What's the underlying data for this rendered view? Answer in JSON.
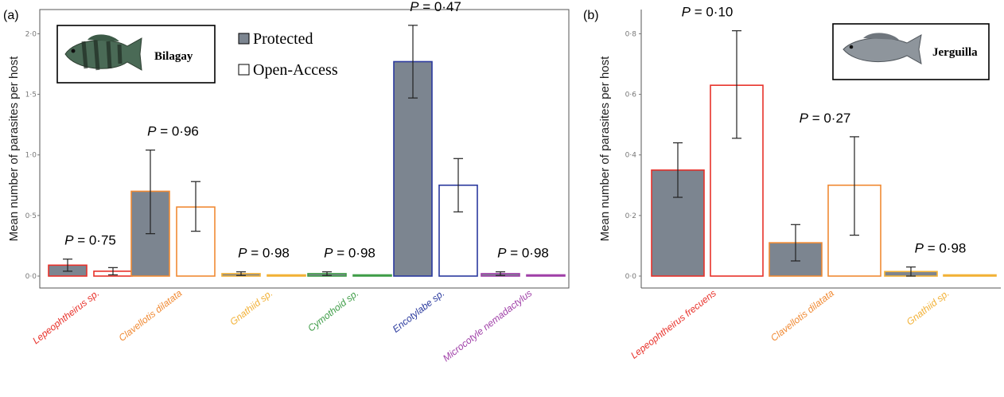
{
  "chart_data": [
    {
      "panel_label": "(a)",
      "type": "bar",
      "title": "",
      "inset_label": "Bilagay",
      "ylabel": "Mean number of parasites per host",
      "xlabel": "",
      "ylim": [
        0,
        2.2
      ],
      "yticks": [
        "0·0",
        "0·5",
        "1·0",
        "1·5",
        "2·0"
      ],
      "ytick_values": [
        0,
        0.5,
        1.0,
        1.5,
        2.0
      ],
      "grid": false,
      "legend": {
        "placement": "top-center",
        "entries": [
          {
            "name": "Protected",
            "fill": "#7c8590"
          },
          {
            "name": "Open-Access",
            "fill": "#ffffff"
          }
        ]
      },
      "categories": [
        "Lepeophtheirus sp.",
        "Clavellotis dilatata",
        "Gnathiid sp.",
        "Cymothoid sp.",
        "Encotylabe sp.",
        "Microcotyle nemadactylus"
      ],
      "category_colors": [
        "#e8312a",
        "#f08a34",
        "#f2b136",
        "#3f9d48",
        "#2b3a9e",
        "#a040a8"
      ],
      "p_values": [
        "0·75",
        "0·96",
        "0·98",
        "0·98",
        "0·47",
        "0·98"
      ],
      "series": [
        {
          "name": "Protected",
          "values": [
            0.09,
            0.7,
            0.02,
            0.02,
            1.77,
            0.02
          ],
          "err_low": [
            0.04,
            0.35,
            0.005,
            0.005,
            1.47,
            0.005
          ],
          "err_high": [
            0.14,
            1.04,
            0.035,
            0.035,
            2.07,
            0.035
          ]
        },
        {
          "name": "Open-Access",
          "values": [
            0.04,
            0.57,
            0.0,
            0.0,
            0.75,
            0.0
          ],
          "err_low": [
            0.01,
            0.37,
            0.0,
            0.0,
            0.53,
            0.0
          ],
          "err_high": [
            0.07,
            0.78,
            0.0,
            0.0,
            0.97,
            0.0
          ]
        }
      ]
    },
    {
      "panel_label": "(b)",
      "type": "bar",
      "title": "",
      "inset_label": "Jerguilla",
      "ylabel": "Mean number of parasites per host",
      "xlabel": "",
      "ylim": [
        0,
        0.88
      ],
      "yticks": [
        "0·0",
        "0·2",
        "0·4",
        "0·6",
        "0·8"
      ],
      "ytick_values": [
        0,
        0.2,
        0.4,
        0.6,
        0.8
      ],
      "grid": false,
      "categories": [
        "Lepeophtheirus frecuens",
        "Clavellotis dilatata",
        "Gnathiid sp."
      ],
      "category_colors": [
        "#e8312a",
        "#f08a34",
        "#f2b136"
      ],
      "p_values": [
        "0·10",
        "0·27",
        "0·98"
      ],
      "series": [
        {
          "name": "Protected",
          "values": [
            0.35,
            0.11,
            0.015
          ],
          "err_low": [
            0.26,
            0.05,
            0.0
          ],
          "err_high": [
            0.44,
            0.17,
            0.03
          ]
        },
        {
          "name": "Open-Access",
          "values": [
            0.63,
            0.3,
            0.0
          ],
          "err_low": [
            0.455,
            0.135,
            0.0
          ],
          "err_high": [
            0.81,
            0.46,
            0.0
          ]
        }
      ]
    }
  ]
}
